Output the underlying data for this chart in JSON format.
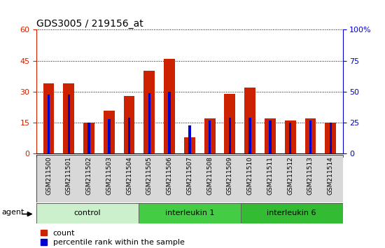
{
  "title": "GDS3005 / 219156_at",
  "samples": [
    "GSM211500",
    "GSM211501",
    "GSM211502",
    "GSM211503",
    "GSM211504",
    "GSM211505",
    "GSM211506",
    "GSM211507",
    "GSM211508",
    "GSM211509",
    "GSM211510",
    "GSM211511",
    "GSM211512",
    "GSM211513",
    "GSM211514"
  ],
  "count_values": [
    34,
    34,
    15,
    21,
    28,
    40,
    46,
    8,
    17,
    29,
    32,
    17,
    16,
    17,
    15
  ],
  "percentile_values": [
    48,
    48,
    25,
    28,
    29,
    49,
    50,
    23,
    27,
    29,
    29,
    27,
    25,
    27,
    25
  ],
  "count_color": "#cc2200",
  "percentile_color": "#0000cc",
  "left_ylim": [
    0,
    60
  ],
  "right_ylim": [
    0,
    100
  ],
  "left_yticks": [
    0,
    15,
    30,
    45,
    60
  ],
  "right_yticks": [
    0,
    25,
    50,
    75,
    100
  ],
  "groups": [
    {
      "label": "control",
      "start": 0,
      "end": 5,
      "color": "#ccf0cc"
    },
    {
      "label": "interleukin 1",
      "start": 5,
      "end": 10,
      "color": "#44cc44"
    },
    {
      "label": "interleukin 6",
      "start": 10,
      "end": 15,
      "color": "#33bb33"
    }
  ],
  "agent_label": "agent",
  "bar_width": 0.55,
  "blue_bar_width": 0.12,
  "background_color": "#ffffff",
  "tick_label_bg": "#d8d8d8",
  "title_fontsize": 10,
  "axis_fontsize": 8,
  "legend_fontsize": 8
}
